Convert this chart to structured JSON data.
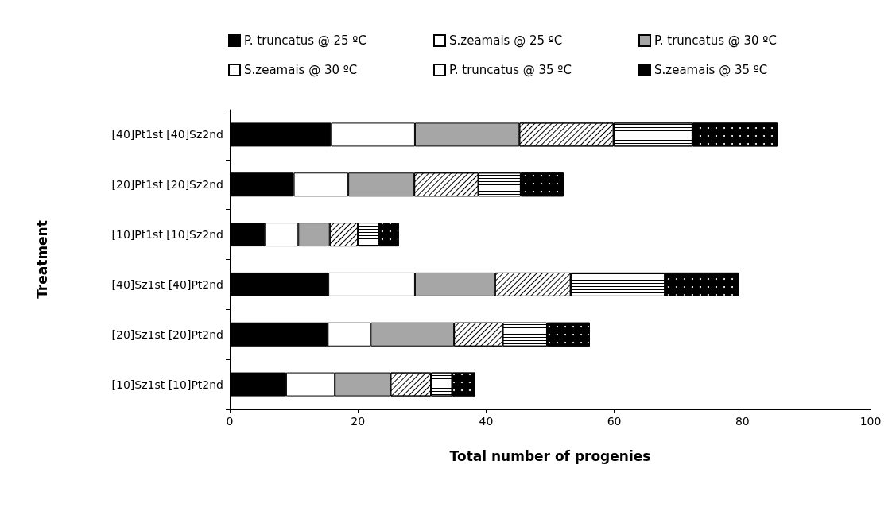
{
  "chart_data": {
    "type": "bar",
    "orientation": "horizontal",
    "stacked": true,
    "xlabel": "Total number of progenies",
    "ylabel": "Treatment",
    "categories": [
      "[40]Pt1st [40]Sz2nd",
      "[20]Pt1st [20]Sz2nd",
      "[10]Pt1st [10]Sz2nd",
      "[40]Sz1st [40]Pt2nd",
      "[20]Sz1st [20]Pt2nd",
      "[10]Sz1st [10]Pt2nd"
    ],
    "series": [
      {
        "name": "P. truncatus @ 25 ºC",
        "color": "#000000",
        "values": [
          15.8,
          10.0,
          5.5,
          15.4,
          15.3,
          8.8
        ]
      },
      {
        "name": "S.zeamais @ 25 ºC",
        "color": "#ffffff",
        "values": [
          13.1,
          8.5,
          5.2,
          13.5,
          6.7,
          7.6
        ]
      },
      {
        "name": "P. truncatus @ 30 ºC",
        "color": "#a6a6a6",
        "values": [
          16.3,
          10.3,
          4.9,
          12.5,
          13.0,
          8.7
        ]
      },
      {
        "name": "S.zeamais @ 30 ºC",
        "color": "#ffffff",
        "values": [
          14.7,
          10.0,
          4.4,
          11.8,
          7.6,
          6.3
        ]
      },
      {
        "name": "P. truncatus @ 35 ºC",
        "color": "#ffffff",
        "values": [
          12.3,
          6.6,
          3.3,
          14.7,
          6.9,
          3.3
        ]
      },
      {
        "name": "S.zeamais @ 35 ºC",
        "color": "#000000",
        "values": [
          13.3,
          6.7,
          3.1,
          11.5,
          6.7,
          3.6
        ]
      }
    ],
    "xlim": [
      0,
      100
    ],
    "xticks": [
      0,
      20,
      40,
      60,
      80,
      100
    ],
    "grid": false,
    "legend": "top"
  }
}
